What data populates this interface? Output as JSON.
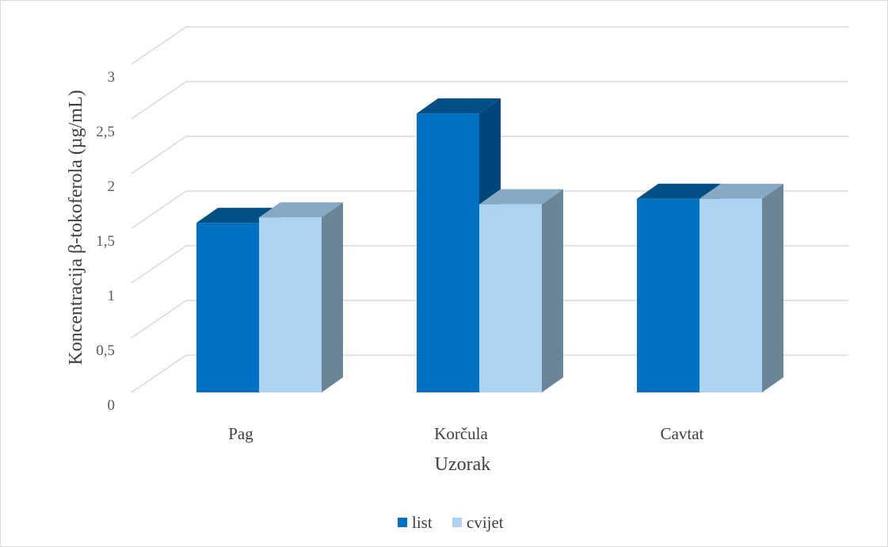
{
  "chart_data": {
    "type": "bar",
    "style": "3d-clustered-column",
    "title": "",
    "xlabel": "Uzorak",
    "ylabel": "Koncentracija β-tokoferola (µg/mL)",
    "categories": [
      "Pag",
      "Korčula",
      "Cavtat"
    ],
    "series": [
      {
        "name": "list",
        "color": "#0070c0",
        "values": [
          1.55,
          2.55,
          1.77
        ]
      },
      {
        "name": "cvijet",
        "color": "#acd3f1",
        "values": [
          1.6,
          1.72,
          1.77
        ]
      }
    ],
    "ylim": [
      0,
      3
    ],
    "yticks": [
      "0",
      "0,5",
      "1",
      "1,5",
      "2",
      "2,5",
      "3"
    ],
    "grid": true,
    "legend_position": "bottom"
  }
}
